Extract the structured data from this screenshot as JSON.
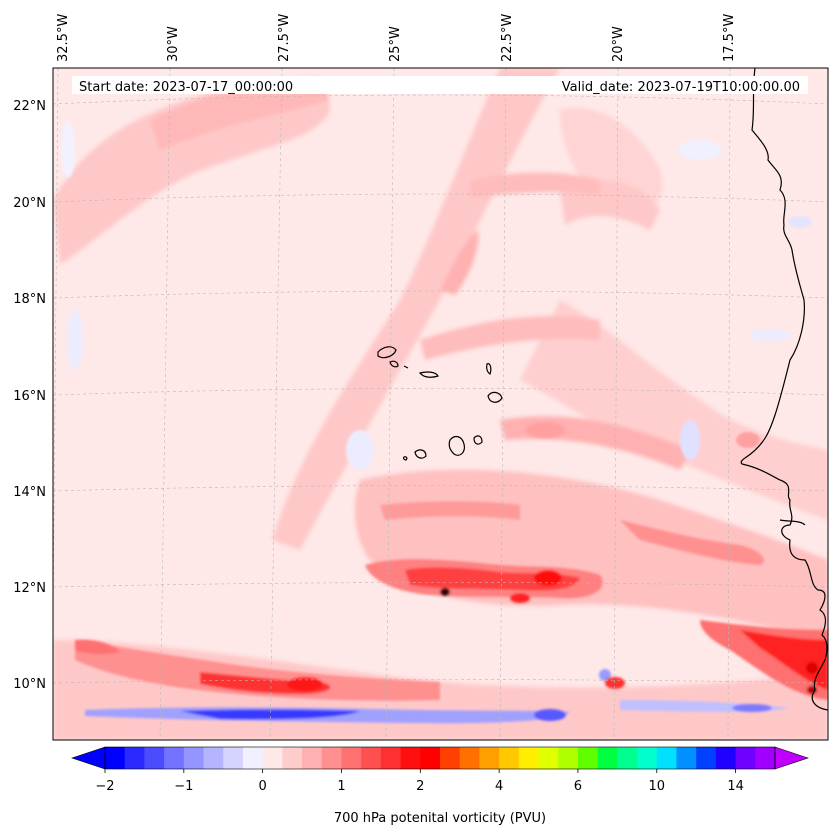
{
  "header": {
    "start_date": "Start date: 2023-07-17_00:00:00",
    "valid_date": "Valid_date: 2023-07-19T10:00:00.00"
  },
  "map": {
    "lon_labels": [
      "32.5°W",
      "30°W",
      "27.5°W",
      "25°W",
      "22.5°W",
      "20°W",
      "17.5°W"
    ],
    "lat_labels": [
      "22°N",
      "20°N",
      "18°N",
      "16°N",
      "14°N",
      "12°N",
      "10°N"
    ],
    "background_color": "#ffe8e8",
    "coastline_color": "#000000"
  },
  "colorbar": {
    "title": "700 hPa potenital vorticity (PVU)",
    "tick_labels": [
      "−2",
      "−1",
      "0",
      "1",
      "2",
      "4",
      "6",
      "10",
      "14"
    ],
    "colors": [
      "#0000ff",
      "#2a2aff",
      "#4c4cff",
      "#7373ff",
      "#9595ff",
      "#b5b5ff",
      "#d4d4ff",
      "#f0f0ff",
      "#ffe8e8",
      "#ffcccc",
      "#ffb0b0",
      "#ff9090",
      "#ff7070",
      "#ff5050",
      "#ff3030",
      "#ff1010",
      "#ff0000",
      "#ff4000",
      "#ff7000",
      "#ffa000",
      "#ffc800",
      "#ffee00",
      "#e0ff00",
      "#b0ff00",
      "#60ff00",
      "#00ff40",
      "#00ff90",
      "#00ffcc",
      "#00e0ff",
      "#0090ff",
      "#0040ff",
      "#2000ff",
      "#7000ff",
      "#a000ff"
    ],
    "extend_min_color": "#0000ff",
    "extend_max_color": "#c000ff"
  }
}
